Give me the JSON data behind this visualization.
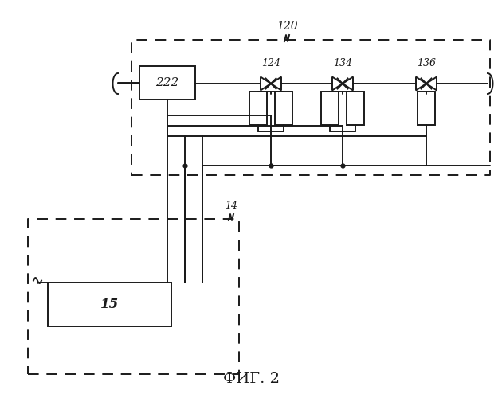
{
  "title": "ФИГ. 2",
  "bg_color": "#ffffff",
  "line_color": "#1a1a1a",
  "label_120": "120",
  "label_124": "124",
  "label_134": "134",
  "label_136": "136",
  "label_222": "222",
  "label_14": "14",
  "label_15": "15"
}
